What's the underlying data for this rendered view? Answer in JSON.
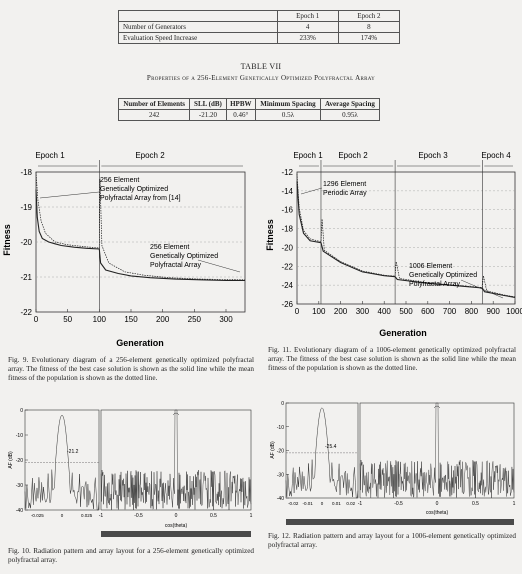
{
  "table_top": {
    "headers": [
      "",
      "Epoch 1",
      "Epoch 2"
    ],
    "rows": [
      [
        "Number of Generators",
        "4",
        "8"
      ],
      [
        "Evaluation Speed Increase",
        "233%",
        "174%"
      ]
    ]
  },
  "table7": {
    "label": "TABLE VII",
    "title": "Properties of a 256-Element Genetically Optimized Polyfractal Array",
    "headers": [
      "Number of Elements",
      "SLL (dB)",
      "HPBW",
      "Minimum Spacing",
      "Average Spacing"
    ],
    "values": [
      "242",
      "-21.20",
      "0.46°",
      "0.5λ",
      "0.95λ"
    ]
  },
  "chart_data": [
    {
      "type": "line",
      "figure": "Fig. 9",
      "xlabel": "Generation",
      "ylabel": "Fitness",
      "xlim": [
        0,
        330
      ],
      "ylim": [
        -22,
        -18
      ],
      "xticks": [
        "0",
        "50",
        "100",
        "150",
        "200",
        "250",
        "300"
      ],
      "yticks": [
        "-18",
        "-19",
        "-20",
        "-21",
        "-22"
      ],
      "epochs": [
        {
          "label": "Epoch 1",
          "range": [
            0,
            100
          ]
        },
        {
          "label": "Epoch 2",
          "range": [
            100,
            330
          ]
        }
      ],
      "annotations": [
        {
          "text": [
            "256 Element",
            "Genetically Optimized",
            "Polyfractal Array from [14]"
          ]
        },
        {
          "text": [
            "256 Element",
            "Genetically Optimized",
            "Polyfractal Array"
          ]
        }
      ],
      "series": [
        {
          "values": [
            [
              0,
              -18.5
            ],
            [
              2,
              -19.3
            ],
            [
              5,
              -19.7
            ],
            [
              10,
              -19.9
            ],
            [
              20,
              -20.0
            ],
            [
              30,
              -20.05
            ],
            [
              40,
              -20.1
            ],
            [
              60,
              -20.15
            ],
            [
              80,
              -20.18
            ],
            [
              100,
              -20.2
            ],
            [
              102,
              -20.6
            ],
            [
              110,
              -20.8
            ],
            [
              130,
              -20.9
            ],
            [
              150,
              -20.97
            ],
            [
              180,
              -21.02
            ],
            [
              220,
              -21.06
            ],
            [
              260,
              -21.08
            ],
            [
              300,
              -21.1
            ],
            [
              330,
              -21.1
            ]
          ]
        },
        {
          "values": [
            [
              0,
              -18.0
            ],
            [
              3,
              -18.8
            ],
            [
              8,
              -19.4
            ],
            [
              15,
              -19.75
            ],
            [
              30,
              -20.0
            ],
            [
              50,
              -20.08
            ],
            [
              80,
              -20.14
            ],
            [
              100,
              -20.17
            ],
            [
              101,
              -18.2
            ],
            [
              104,
              -20.1
            ],
            [
              115,
              -20.6
            ],
            [
              140,
              -20.85
            ],
            [
              170,
              -20.95
            ],
            [
              210,
              -21.02
            ],
            [
              260,
              -21.06
            ],
            [
              330,
              -21.08
            ]
          ]
        }
      ]
    },
    {
      "type": "line",
      "figure": "Fig. 11",
      "xlabel": "Generation",
      "ylabel": "Fitness",
      "xlim": [
        0,
        1000
      ],
      "ylim": [
        -26,
        -12
      ],
      "xticks": [
        "0",
        "100",
        "200",
        "300",
        "400",
        "500",
        "600",
        "700",
        "800",
        "900",
        "1000"
      ],
      "yticks": [
        "-12",
        "-14",
        "-16",
        "-18",
        "-20",
        "-22",
        "-24",
        "-26"
      ],
      "epochs": [
        {
          "label": "Epoch 1",
          "range": [
            0,
            110
          ]
        },
        {
          "label": "Epoch 2",
          "range": [
            110,
            450
          ]
        },
        {
          "label": "Epoch 3",
          "range": [
            450,
            850
          ]
        },
        {
          "label": "Epoch 4",
          "range": [
            850,
            1000
          ]
        }
      ],
      "annotations": [
        {
          "text": [
            "1296 Element",
            "Periodic Array"
          ]
        },
        {
          "text": [
            "1006 Element",
            "Genetically Optimized",
            "Polyfractal Array"
          ]
        }
      ],
      "series": [
        {
          "values": [
            [
              0,
              -13.0
            ],
            [
              10,
              -16.5
            ],
            [
              30,
              -18.5
            ],
            [
              60,
              -19.3
            ],
            [
              110,
              -19.5
            ],
            [
              120,
              -20.4
            ],
            [
              200,
              -21.6
            ],
            [
              300,
              -22.6
            ],
            [
              400,
              -23.0
            ],
            [
              450,
              -23.1
            ],
            [
              460,
              -23.4
            ],
            [
              600,
              -23.8
            ],
            [
              750,
              -24.1
            ],
            [
              850,
              -24.3
            ],
            [
              860,
              -24.7
            ],
            [
              950,
              -25.1
            ],
            [
              1000,
              -25.3
            ]
          ]
        },
        {
          "values": [
            [
              0,
              -12.2
            ],
            [
              10,
              -15.8
            ],
            [
              30,
              -18.2
            ],
            [
              60,
              -19.1
            ],
            [
              110,
              -19.4
            ],
            [
              115,
              -17.0
            ],
            [
              125,
              -20.3
            ],
            [
              200,
              -21.5
            ],
            [
              300,
              -22.5
            ],
            [
              400,
              -22.95
            ],
            [
              450,
              -23.05
            ],
            [
              455,
              -21.5
            ],
            [
              470,
              -23.3
            ],
            [
              600,
              -23.75
            ],
            [
              750,
              -24.05
            ],
            [
              850,
              -24.25
            ],
            [
              855,
              -23.0
            ],
            [
              870,
              -24.6
            ],
            [
              950,
              -25.05
            ],
            [
              1000,
              -25.25
            ]
          ]
        }
      ]
    },
    {
      "type": "line",
      "figure": "Fig. 10",
      "ylabel": "AF (dB)",
      "xlabel": "cos(theta)",
      "yticks": [
        "0",
        "-10",
        "-20",
        "-30",
        "-40"
      ],
      "inset_xticks": [
        "-0.025",
        "0",
        "0.025"
      ],
      "xticks": [
        "-1",
        "-0.5",
        "0",
        "0.5",
        "1"
      ],
      "annotations": [
        {
          "text": [
            "-21.2"
          ]
        }
      ]
    },
    {
      "type": "line",
      "figure": "Fig. 12",
      "ylabel": "AF (dB)",
      "xlabel": "cos(theta)",
      "yticks": [
        "0",
        "-10",
        "-20",
        "-30",
        "-40"
      ],
      "inset_xticks": [
        "-0.02",
        "-0.01",
        "0",
        "0.01",
        "0.02"
      ],
      "xticks": [
        "-1",
        "-0.5",
        "0",
        "0.5",
        "1"
      ],
      "annotations": [
        {
          "text": [
            "-25.4"
          ]
        }
      ]
    }
  ],
  "captions": {
    "fig9": "Fig. 9. Evolutionary diagram of a 256-element genetically optimized polyfractal array. The fitness of the best case solution is shown as the solid line while the mean fitness of the population is shown as the dotted line.",
    "fig11": "Fig. 11. Evolutionary diagram of a 1006-element genetically optimized polyfractal array. The fitness of the best case solution is shown as the solid line while the mean fitness of the population is shown as the dotted line.",
    "fig10": "Fig. 10. Radiation pattern and array layout for a 256-element genetically optimized polyfractal array.",
    "fig12": "Fig. 12. Radiation pattern and array layout for a 1006-element genetically optimized polyfractal array."
  }
}
